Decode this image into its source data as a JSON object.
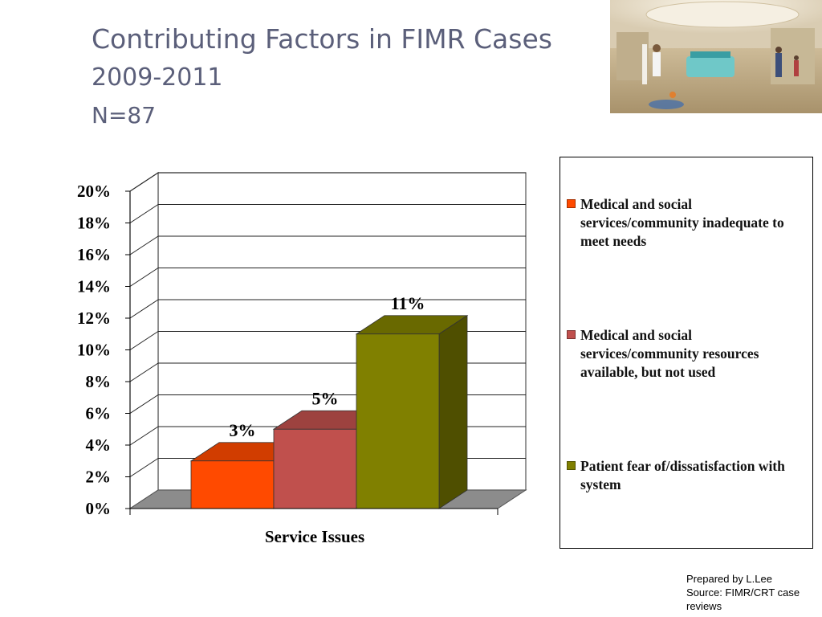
{
  "title": {
    "line1": "Contributing Factors in FIMR Cases",
    "line2": "2009-2011",
    "line3": "N=87"
  },
  "photo": {
    "name": "hospital-lobby-photo"
  },
  "chart_data": {
    "type": "bar",
    "categories": [
      "Service Issues"
    ],
    "xlabel": "Service Issues",
    "ylabel": "",
    "ylim": [
      0,
      20
    ],
    "yticks": [
      "0%",
      "2%",
      "4%",
      "6%",
      "8%",
      "10%",
      "12%",
      "14%",
      "16%",
      "18%",
      "20%"
    ],
    "grid": true,
    "three_d": true,
    "legend_position": "right",
    "series": [
      {
        "name": "Medical and social services/community inadequate to meet needs",
        "values": [
          3
        ],
        "label": "3%",
        "color": "#ff4a00"
      },
      {
        "name": "Medical and social services/community resources available, but not used",
        "values": [
          5
        ],
        "label": "5%",
        "color": "#c0504d"
      },
      {
        "name": "Patient fear of/dissatisfaction with system",
        "values": [
          11
        ],
        "label": "11%",
        "color": "#808000"
      }
    ]
  },
  "footer": {
    "line1": "Prepared by L.Lee",
    "line2": "Source: FIMR/CRT case reviews"
  }
}
